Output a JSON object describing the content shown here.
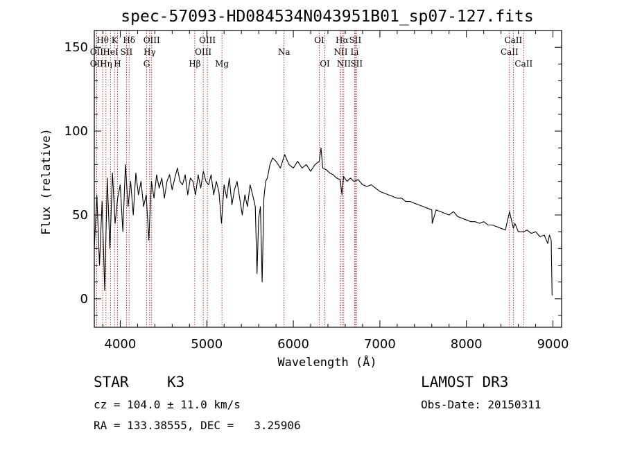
{
  "chart_data": {
    "type": "line",
    "title": "spec-57093-HD084534N043951B01_sp07-127.fits",
    "xlabel": "Wavelength (Å)",
    "ylabel": "Flux (relative)",
    "xlim": [
      3700,
      9100
    ],
    "ylim": [
      -17,
      160
    ],
    "xticks": [
      4000,
      5000,
      6000,
      7000,
      8000,
      9000
    ],
    "yticks": [
      0,
      50,
      100,
      150
    ],
    "spectrum_x": [
      3700,
      3730,
      3760,
      3790,
      3820,
      3850,
      3880,
      3910,
      3940,
      3970,
      4000,
      4030,
      4060,
      4090,
      4120,
      4150,
      4180,
      4210,
      4240,
      4270,
      4300,
      4330,
      4360,
      4390,
      4420,
      4450,
      4480,
      4510,
      4540,
      4570,
      4600,
      4630,
      4660,
      4690,
      4720,
      4750,
      4780,
      4810,
      4840,
      4870,
      4900,
      4930,
      4960,
      4990,
      5020,
      5050,
      5080,
      5110,
      5140,
      5170,
      5200,
      5230,
      5260,
      5290,
      5320,
      5350,
      5380,
      5410,
      5440,
      5470,
      5500,
      5530,
      5560,
      5580,
      5600,
      5620,
      5640,
      5660,
      5680,
      5700,
      5730,
      5760,
      5800,
      5850,
      5900,
      5950,
      6000,
      6050,
      6100,
      6150,
      6200,
      6250,
      6300,
      6320,
      6340,
      6380,
      6420,
      6460,
      6500,
      6540,
      6563,
      6580,
      6620,
      6660,
      6700,
      6750,
      6800,
      6850,
      6900,
      6950,
      7000,
      7050,
      7100,
      7150,
      7200,
      7250,
      7300,
      7350,
      7400,
      7450,
      7500,
      7550,
      7600,
      7605,
      7650,
      7700,
      7750,
      7800,
      7850,
      7900,
      7950,
      8000,
      8050,
      8100,
      8150,
      8200,
      8250,
      8300,
      8350,
      8400,
      8450,
      8498,
      8542,
      8560,
      8600,
      8662,
      8700,
      8750,
      8800,
      8850,
      8900,
      8940,
      8960,
      8980,
      8990
    ],
    "spectrum_y": [
      30,
      62,
      20,
      58,
      5,
      72,
      30,
      75,
      45,
      60,
      68,
      40,
      80,
      55,
      70,
      50,
      75,
      62,
      70,
      55,
      62,
      35,
      70,
      60,
      74,
      66,
      72,
      60,
      70,
      74,
      65,
      72,
      78,
      70,
      68,
      74,
      62,
      72,
      70,
      62,
      74,
      66,
      76,
      70,
      68,
      74,
      62,
      70,
      64,
      45,
      68,
      60,
      72,
      56,
      65,
      70,
      60,
      50,
      62,
      55,
      68,
      62,
      55,
      15,
      48,
      55,
      10,
      60,
      70,
      72,
      80,
      84,
      82,
      78,
      86,
      80,
      78,
      82,
      78,
      80,
      76,
      80,
      82,
      90,
      78,
      77,
      75,
      74,
      72,
      71,
      62,
      73,
      70,
      72,
      70,
      71,
      68,
      67,
      68,
      66,
      64,
      63,
      62,
      61,
      60,
      60,
      58,
      58,
      57,
      56,
      55,
      54,
      53,
      45,
      53,
      52,
      51,
      50,
      52,
      49,
      48,
      47,
      46,
      46,
      45,
      46,
      44,
      44,
      43,
      42,
      41,
      52,
      42,
      45,
      40,
      40,
      41,
      39,
      40,
      37,
      38,
      33,
      38,
      35,
      2
    ],
    "lines": [
      {
        "name": "Hδ",
        "wavelength": 4102,
        "row": 1
      },
      {
        "name": "Hγ",
        "wavelength": 4340,
        "row": 2
      },
      {
        "name": "Hβ",
        "wavelength": 4861,
        "row": 3
      },
      {
        "name": "Hα",
        "wavelength": 6563,
        "row": 1
      },
      {
        "name": "Hη",
        "wavelength": 3835,
        "row": 3
      },
      {
        "name": "Hθ",
        "wavelength": 3797,
        "row": 1
      },
      {
        "name": "K",
        "wavelength": 3934,
        "row": 1
      },
      {
        "name": "H",
        "wavelength": 3968,
        "row": 3
      },
      {
        "name": "G",
        "wavelength": 4305,
        "row": 3
      },
      {
        "name": "Mg",
        "wavelength": 5175,
        "row": 3
      },
      {
        "name": "Na",
        "wavelength": 5893,
        "row": 2
      },
      {
        "name": "OII",
        "wavelength": 3727,
        "row": 2
      },
      {
        "name": "OII",
        "wavelength": 3727,
        "row": 3
      },
      {
        "name": "HeI",
        "wavelength": 3889,
        "row": 2
      },
      {
        "name": "SII",
        "wavelength": 4072,
        "row": 2
      },
      {
        "name": "OIII",
        "wavelength": 4363,
        "row": 1
      },
      {
        "name": "OIII",
        "wavelength": 4959,
        "row": 2
      },
      {
        "name": "OIII",
        "wavelength": 5007,
        "row": 1
      },
      {
        "name": "OI",
        "wavelength": 6300,
        "row": 1
      },
      {
        "name": "OI",
        "wavelength": 6364,
        "row": 3
      },
      {
        "name": "NII",
        "wavelength": 6548,
        "row": 2
      },
      {
        "name": "NII",
        "wavelength": 6583,
        "row": 3
      },
      {
        "name": "SII",
        "wavelength": 6716,
        "row": 1
      },
      {
        "name": "Li",
        "wavelength": 6708,
        "row": 2
      },
      {
        "name": "SII",
        "wavelength": 6731,
        "row": 3
      },
      {
        "name": "CaII",
        "wavelength": 8498,
        "row": 2
      },
      {
        "name": "CaII",
        "wavelength": 8542,
        "row": 1
      },
      {
        "name": "CaII",
        "wavelength": 8662,
        "row": 3
      }
    ],
    "line_color": "#b30000",
    "spectrum_color": "#000000"
  },
  "info": {
    "class_label": "STAR",
    "subclass": "K3",
    "survey": "LAMOST DR3",
    "redshift": "cz = 104.0 ± 11.0 km/s",
    "obs_date": "Obs-Date: 20150311",
    "coords": "RA = 133.38555, DEC =   3.25906"
  }
}
